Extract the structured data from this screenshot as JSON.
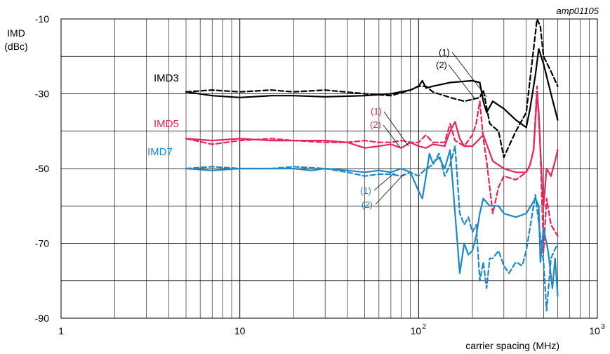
{
  "chart_data": {
    "type": "line",
    "figure_id": "amp01105",
    "ylabel_lines": [
      "IMD",
      "(dBc)"
    ],
    "xlabel": "carrier spacing (MHz)",
    "x_scale": "log",
    "xlim": [
      1,
      1000
    ],
    "ylim": [
      -90,
      -10
    ],
    "x_ticks": [
      {
        "value": 1,
        "label": "1"
      },
      {
        "value": 10,
        "label": "10"
      },
      {
        "value": 100,
        "label": "10",
        "sup": "2"
      },
      {
        "value": 1000,
        "label": "10",
        "sup": "3"
      }
    ],
    "y_ticks": [
      {
        "value": -10,
        "label": "-10"
      },
      {
        "value": -30,
        "label": "-30"
      },
      {
        "value": -50,
        "label": "-50"
      },
      {
        "value": -70,
        "label": "-70"
      },
      {
        "value": -90,
        "label": "-90"
      }
    ],
    "grid": true,
    "colors": {
      "IMD3": "#000000",
      "IMD5": "#e8245a",
      "IMD7": "#1e88c8"
    },
    "series": [
      {
        "name": "IMD3",
        "curve": "(1)",
        "style": "solid",
        "color": "#000000",
        "x": [
          5,
          7,
          10,
          15,
          20,
          30,
          50,
          70,
          90,
          100,
          105,
          110,
          120,
          150,
          200,
          220,
          230,
          240,
          260,
          300,
          350,
          400,
          420,
          450,
          470,
          500,
          550,
          600
        ],
        "y": [
          -29.5,
          -30.5,
          -31,
          -30.5,
          -30.5,
          -30.8,
          -30.5,
          -30,
          -29,
          -28,
          -26.5,
          -28.5,
          -28,
          -27,
          -26.5,
          -27,
          -32,
          -35,
          -32,
          -34,
          -37,
          -39,
          -34,
          -25,
          -18,
          -22,
          -30,
          -37
        ]
      },
      {
        "name": "IMD3",
        "curve": "(2)",
        "style": "dashed",
        "color": "#000000",
        "x": [
          5,
          7,
          10,
          15,
          20,
          30,
          50,
          70,
          90,
          100,
          110,
          120,
          150,
          180,
          200,
          220,
          230,
          250,
          280,
          300,
          320,
          350,
          400,
          430,
          460,
          480,
          500,
          550,
          600
        ],
        "y": [
          -29.5,
          -29,
          -29.5,
          -29,
          -29.5,
          -29,
          -30,
          -30.5,
          -29,
          -28,
          -28,
          -29.5,
          -31,
          -32,
          -31.5,
          -31,
          -29,
          -38,
          -40,
          -47,
          -44,
          -40,
          -35,
          -22,
          -10,
          -12,
          -20,
          -24,
          -28
        ]
      },
      {
        "name": "IMD5",
        "curve": "(1)",
        "style": "solid",
        "color": "#e8245a",
        "x": [
          5,
          7,
          10,
          15,
          20,
          30,
          40,
          50,
          60,
          70,
          80,
          90,
          100,
          110,
          120,
          140,
          150,
          160,
          170,
          180,
          200,
          230,
          260,
          300,
          350,
          400,
          420,
          440,
          460,
          470,
          480,
          500,
          520,
          550,
          580,
          600
        ],
        "y": [
          -42,
          -42.5,
          -42,
          -42.5,
          -42.5,
          -42.5,
          -43,
          -44.5,
          -44,
          -43.5,
          -44.5,
          -43,
          -44,
          -44.5,
          -43.5,
          -44,
          -40,
          -37.5,
          -42,
          -44,
          -44,
          -41,
          -48,
          -50,
          -51,
          -51,
          -49,
          -45,
          -30,
          -35,
          -45,
          -60,
          -50,
          -52,
          -48,
          -45
        ]
      },
      {
        "name": "IMD5",
        "curve": "(2)",
        "style": "dashed",
        "color": "#e8245a",
        "x": [
          5,
          7,
          10,
          15,
          20,
          30,
          40,
          50,
          60,
          70,
          80,
          90,
          100,
          110,
          120,
          140,
          150,
          160,
          180,
          200,
          210,
          220,
          230,
          240,
          260,
          280,
          300,
          350,
          400,
          420,
          440,
          460,
          480,
          500,
          520,
          550,
          600
        ],
        "y": [
          -42,
          -43.5,
          -42.5,
          -42,
          -42.5,
          -43,
          -43,
          -42.5,
          -43,
          -43,
          -42.5,
          -43,
          -43,
          -41,
          -43,
          -43,
          -38,
          -42.5,
          -44,
          -41,
          -38,
          -32,
          -42,
          -48,
          -62,
          -55,
          -52,
          -53,
          -51,
          -49,
          -45,
          -28,
          -45,
          -72,
          -58,
          -65,
          -68
        ]
      },
      {
        "name": "IMD7",
        "curve": "(1)",
        "style": "solid",
        "color": "#1e88c8",
        "x": [
          5,
          7,
          10,
          15,
          20,
          25,
          30,
          40,
          50,
          60,
          70,
          80,
          90,
          100,
          105,
          110,
          115,
          120,
          130,
          140,
          150,
          160,
          170,
          180,
          190,
          200,
          210,
          220,
          230,
          250,
          280,
          300,
          350,
          400,
          450,
          470,
          480,
          500,
          530,
          560,
          580,
          600
        ],
        "y": [
          -50,
          -50.5,
          -50,
          -50,
          -50,
          -50.5,
          -50,
          -50.5,
          -51,
          -50.5,
          -51,
          -50,
          -51,
          -56,
          -58,
          -52,
          -46,
          -48.5,
          -47,
          -50,
          -45,
          -62,
          -78,
          -70,
          -73,
          -72,
          -68,
          -62,
          -58,
          -60,
          -60,
          -62,
          -63,
          -62,
          -58,
          -60,
          -75,
          -66,
          -72,
          -82,
          -74,
          -84
        ]
      },
      {
        "name": "IMD7",
        "curve": "(2)",
        "style": "dashed",
        "color": "#1e88c8",
        "x": [
          5,
          7,
          10,
          15,
          20,
          30,
          40,
          50,
          60,
          70,
          80,
          90,
          100,
          110,
          120,
          130,
          140,
          150,
          160,
          170,
          180,
          190,
          200,
          210,
          220,
          230,
          240,
          250,
          260,
          280,
          300,
          320,
          350,
          380,
          400,
          450,
          480,
          500,
          520,
          550,
          600
        ],
        "y": [
          -50,
          -49.5,
          -50,
          -50,
          -49.5,
          -50,
          -51,
          -52,
          -51.5,
          -51.5,
          -52,
          -51,
          -52,
          -50,
          -49,
          -46,
          -52,
          -49,
          -44,
          -62,
          -65,
          -63,
          -67,
          -65,
          -80,
          -75,
          -82,
          -74,
          -74,
          -72,
          -76,
          -78,
          -75,
          -76,
          -72,
          -57,
          -68,
          -75,
          -88,
          -74,
          -70
        ]
      }
    ],
    "annotations": [
      {
        "text": "IMD3",
        "color": "#000000"
      },
      {
        "text": "IMD5",
        "color": "#e8245a"
      },
      {
        "text": "IMD7",
        "color": "#1e88c8"
      },
      {
        "text": "(1)",
        "color": "#000000"
      },
      {
        "text": "(2)",
        "color": "#000000"
      },
      {
        "text": "(1)",
        "color": "#e8245a"
      },
      {
        "text": "(2)",
        "color": "#e8245a"
      },
      {
        "text": "(1)",
        "color": "#1e88c8"
      },
      {
        "text": "(2)",
        "color": "#1e88c8"
      }
    ]
  }
}
